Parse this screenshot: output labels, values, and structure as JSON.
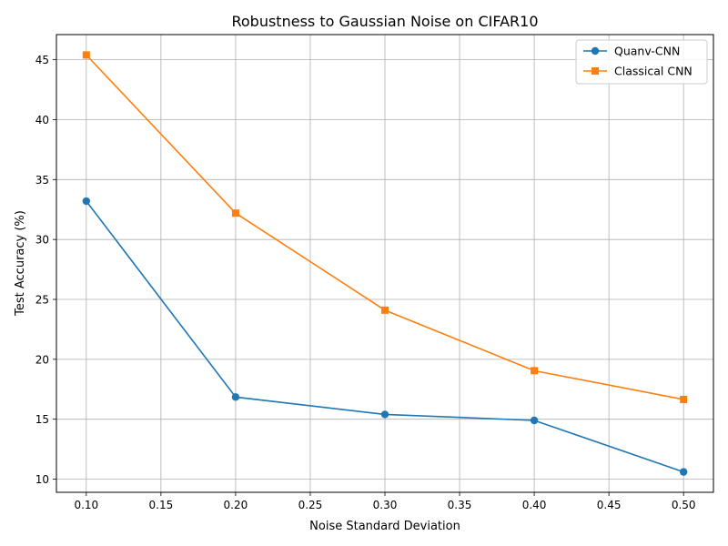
{
  "chart_data": {
    "type": "line",
    "title": "Robustness to Gaussian Noise on CIFAR10",
    "xlabel": "Noise Standard Deviation",
    "ylabel": "Test Accuracy (%)",
    "x": [
      0.1,
      0.2,
      0.3,
      0.4,
      0.5
    ],
    "xlim": [
      0.08,
      0.52
    ],
    "ylim": [
      8.9,
      47.1
    ],
    "xticks": [
      "0.10",
      "0.15",
      "0.20",
      "0.25",
      "0.30",
      "0.35",
      "0.40",
      "0.45",
      "0.50"
    ],
    "yticks": [
      "10",
      "15",
      "20",
      "25",
      "30",
      "35",
      "40",
      "45"
    ],
    "grid": true,
    "legend_position": "top-right",
    "series": [
      {
        "name": "Quanv-CNN",
        "values": [
          33.2,
          16.85,
          15.4,
          14.9,
          10.6
        ],
        "color": "#1f77b4",
        "marker": "circle"
      },
      {
        "name": "Classical CNN",
        "values": [
          45.4,
          32.2,
          24.1,
          19.05,
          16.65
        ],
        "color": "#ff7f0e",
        "marker": "square"
      }
    ]
  }
}
